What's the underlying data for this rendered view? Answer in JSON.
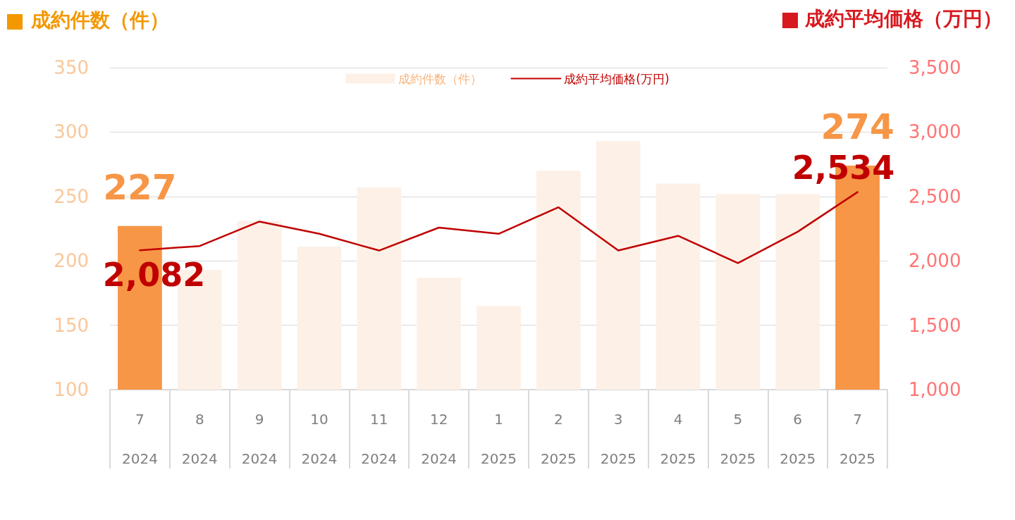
{
  "chart_data": {
    "type": "bar",
    "ylabel": "成約件数（件）",
    "y2label": "成約平均価格（万円）",
    "categories": [
      "7\n2024",
      "8\n2024",
      "9\n2024",
      "10\n2024",
      "11\n2024",
      "12\n2024",
      "1\n2025",
      "2\n2025",
      "3\n2025",
      "4\n2025",
      "5\n2025",
      "6\n2025",
      "7\n2025"
    ],
    "series": [
      {
        "name": "成約件数（件）",
        "color": "#f79646",
        "colors": [
          "#f79646",
          "#fdf1e7",
          "#fdf1e7",
          "#fdf1e7",
          "#fdf1e7",
          "#fdf1e7",
          "#fdf1e7",
          "#fdf1e7",
          "#fdf1e7",
          "#fdf1e7",
          "#fdf1e7",
          "#fdf1e7",
          "#f79646"
        ],
        "values": [
          227,
          193,
          231,
          211,
          257,
          187,
          165,
          270,
          293,
          260,
          252,
          252,
          274
        ],
        "value_labels": [
          "227",
          null,
          null,
          null,
          null,
          null,
          null,
          null,
          null,
          null,
          null,
          null,
          "274"
        ]
      },
      {
        "name": "成約平均価格(万円)",
        "type": "line",
        "axis": "y2",
        "color": "#c00000",
        "values": [
          2082,
          2115,
          2305,
          2210,
          2080,
          2258,
          2210,
          2416,
          2080,
          2194,
          1983,
          2226,
          2534
        ],
        "value_labels": [
          "2,082",
          null,
          null,
          null,
          null,
          null,
          null,
          null,
          null,
          null,
          null,
          null,
          "2,534"
        ]
      }
    ],
    "ylim": [
      100,
      350
    ],
    "yticks": [
      100,
      150,
      200,
      250,
      300,
      350
    ],
    "y2lim": [
      1000,
      3500
    ],
    "y2ticks": [
      {
        "value": 1000,
        "label": "1,000"
      },
      {
        "value": 1500,
        "label": "1,500"
      },
      {
        "value": 2000,
        "label": "2,000"
      },
      {
        "value": 2500,
        "label": "2,500"
      },
      {
        "value": 3000,
        "label": "3,000"
      },
      {
        "value": 3500,
        "label": "3,500"
      }
    ],
    "grid": "y",
    "legend": "top",
    "marker": "none",
    "line_style": "solid"
  }
}
